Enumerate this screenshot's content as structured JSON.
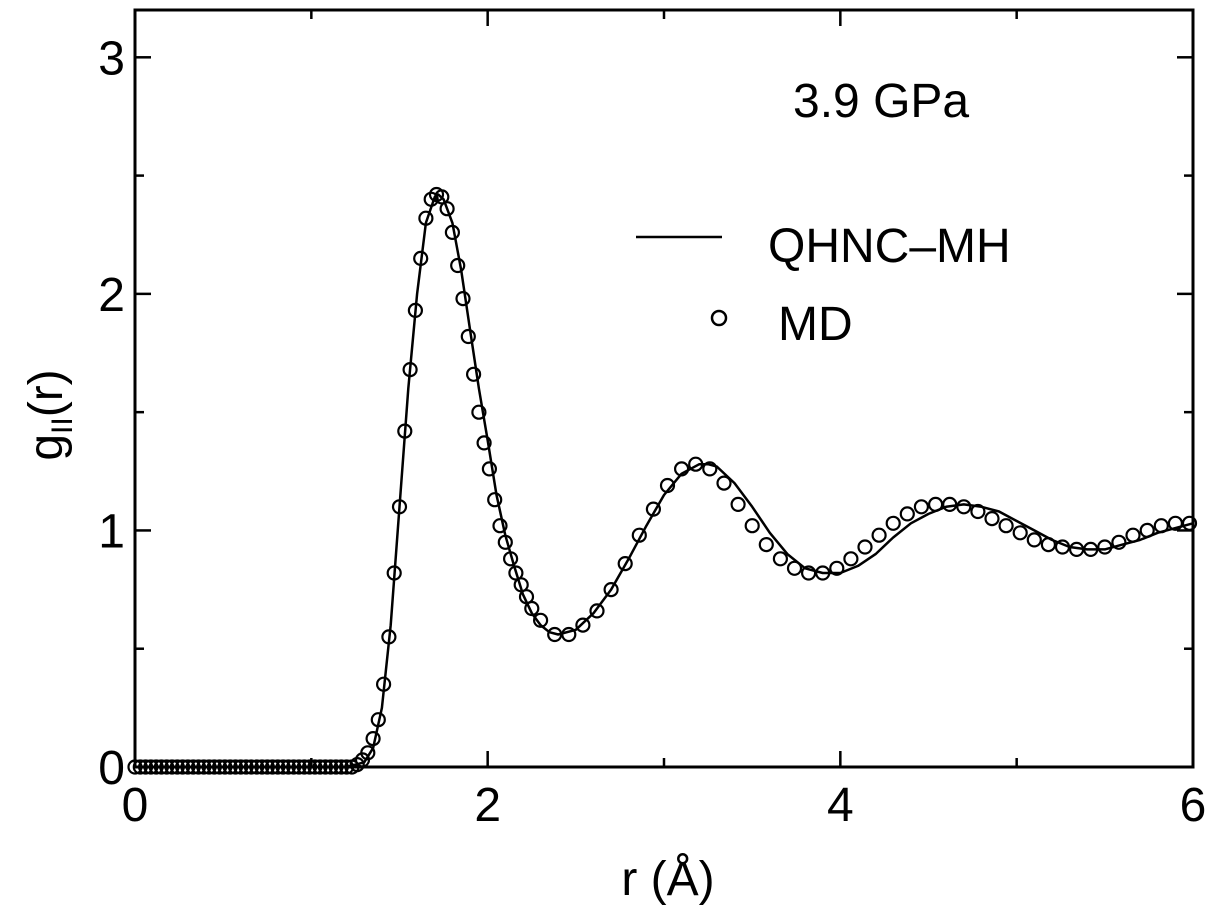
{
  "chart_data": {
    "type": "line",
    "title": "",
    "annotation": "3.9 GPa",
    "xlabel": "r (Å)",
    "ylabel_main": "g",
    "ylabel_sub": "II",
    "ylabel_tail": "(r)",
    "xlim": [
      0,
      6
    ],
    "ylim": [
      0,
      3.2
    ],
    "x_ticks": [
      0,
      2,
      4,
      6
    ],
    "y_ticks": [
      0,
      1,
      2,
      3
    ],
    "grid": false,
    "legend_position": "upper-right",
    "series": [
      {
        "name": "QHNC–MH",
        "style": "line",
        "color": "#000000",
        "x": [
          0.0,
          1.0,
          1.2,
          1.3,
          1.35,
          1.4,
          1.45,
          1.5,
          1.55,
          1.6,
          1.65,
          1.7,
          1.72,
          1.75,
          1.8,
          1.85,
          1.9,
          1.95,
          2.0,
          2.05,
          2.1,
          2.15,
          2.2,
          2.25,
          2.3,
          2.35,
          2.4,
          2.5,
          2.6,
          2.7,
          2.8,
          2.9,
          3.0,
          3.1,
          3.2,
          3.25,
          3.3,
          3.4,
          3.5,
          3.6,
          3.7,
          3.8,
          3.9,
          4.0,
          4.1,
          4.2,
          4.3,
          4.4,
          4.5,
          4.6,
          4.7,
          4.8,
          4.9,
          5.0,
          5.1,
          5.2,
          5.3,
          5.4,
          5.5,
          5.6,
          5.7,
          5.8,
          5.9,
          6.0
        ],
        "y": [
          0.0,
          0.0,
          0.0,
          0.02,
          0.08,
          0.25,
          0.6,
          1.1,
          1.6,
          2.0,
          2.3,
          2.41,
          2.42,
          2.4,
          2.3,
          2.1,
          1.85,
          1.6,
          1.38,
          1.15,
          0.98,
          0.85,
          0.73,
          0.65,
          0.6,
          0.57,
          0.56,
          0.58,
          0.65,
          0.75,
          0.88,
          1.02,
          1.15,
          1.24,
          1.28,
          1.28,
          1.27,
          1.2,
          1.1,
          0.99,
          0.9,
          0.84,
          0.82,
          0.82,
          0.85,
          0.9,
          0.97,
          1.03,
          1.07,
          1.1,
          1.11,
          1.1,
          1.08,
          1.04,
          1.0,
          0.96,
          0.93,
          0.92,
          0.92,
          0.94,
          0.96,
          0.99,
          1.01,
          1.03
        ]
      },
      {
        "name": "MD",
        "style": "markers",
        "marker": "open-circle",
        "color": "#000000",
        "x": [
          0.0,
          0.03,
          0.06,
          0.09,
          0.12,
          0.15,
          0.18,
          0.21,
          0.24,
          0.27,
          0.3,
          0.33,
          0.36,
          0.39,
          0.42,
          0.45,
          0.48,
          0.51,
          0.54,
          0.57,
          0.6,
          0.63,
          0.66,
          0.69,
          0.72,
          0.75,
          0.78,
          0.81,
          0.84,
          0.87,
          0.9,
          0.93,
          0.96,
          0.99,
          1.02,
          1.05,
          1.08,
          1.11,
          1.14,
          1.17,
          1.2,
          1.23,
          1.26,
          1.29,
          1.32,
          1.35,
          1.38,
          1.41,
          1.44,
          1.47,
          1.5,
          1.53,
          1.56,
          1.59,
          1.62,
          1.65,
          1.68,
          1.71,
          1.74,
          1.77,
          1.8,
          1.83,
          1.86,
          1.89,
          1.92,
          1.95,
          1.98,
          2.01,
          2.04,
          2.07,
          2.1,
          2.13,
          2.16,
          2.19,
          2.22,
          2.25,
          2.3,
          2.38,
          2.46,
          2.54,
          2.62,
          2.7,
          2.78,
          2.86,
          2.94,
          3.02,
          3.1,
          3.18,
          3.26,
          3.34,
          3.42,
          3.5,
          3.58,
          3.66,
          3.74,
          3.82,
          3.9,
          3.98,
          4.06,
          4.14,
          4.22,
          4.3,
          4.38,
          4.46,
          4.54,
          4.62,
          4.7,
          4.78,
          4.86,
          4.94,
          5.02,
          5.1,
          5.18,
          5.26,
          5.34,
          5.42,
          5.5,
          5.58,
          5.66,
          5.74,
          5.82,
          5.9,
          5.98
        ],
        "y": [
          0.0,
          0.0,
          0.0,
          0.0,
          0.0,
          0.0,
          0.0,
          0.0,
          0.0,
          0.0,
          0.0,
          0.0,
          0.0,
          0.0,
          0.0,
          0.0,
          0.0,
          0.0,
          0.0,
          0.0,
          0.0,
          0.0,
          0.0,
          0.0,
          0.0,
          0.0,
          0.0,
          0.0,
          0.0,
          0.0,
          0.0,
          0.0,
          0.0,
          0.0,
          0.0,
          0.0,
          0.0,
          0.0,
          0.0,
          0.0,
          0.0,
          0.0,
          0.01,
          0.03,
          0.06,
          0.12,
          0.2,
          0.35,
          0.55,
          0.82,
          1.1,
          1.42,
          1.68,
          1.93,
          2.15,
          2.32,
          2.4,
          2.42,
          2.41,
          2.36,
          2.26,
          2.12,
          1.98,
          1.82,
          1.66,
          1.5,
          1.37,
          1.26,
          1.13,
          1.02,
          0.95,
          0.88,
          0.82,
          0.77,
          0.72,
          0.67,
          0.62,
          0.56,
          0.56,
          0.6,
          0.66,
          0.75,
          0.86,
          0.98,
          1.09,
          1.19,
          1.26,
          1.28,
          1.26,
          1.2,
          1.11,
          1.02,
          0.94,
          0.88,
          0.84,
          0.82,
          0.82,
          0.84,
          0.88,
          0.93,
          0.98,
          1.03,
          1.07,
          1.1,
          1.11,
          1.11,
          1.1,
          1.08,
          1.05,
          1.02,
          0.99,
          0.96,
          0.94,
          0.93,
          0.92,
          0.92,
          0.93,
          0.95,
          0.98,
          1.0,
          1.02,
          1.03,
          1.03
        ]
      }
    ]
  }
}
